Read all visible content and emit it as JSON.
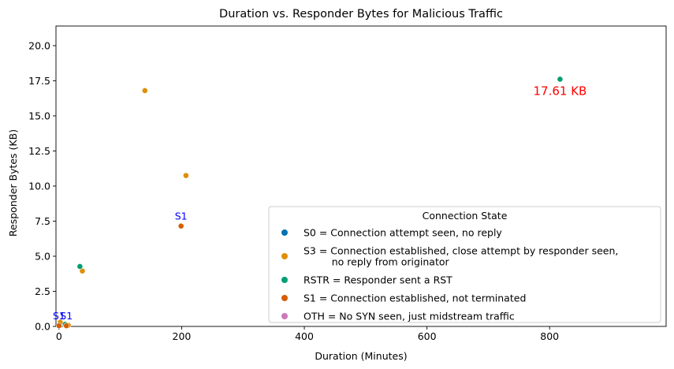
{
  "chart_data": {
    "type": "scatter",
    "title": "Duration vs. Responder Bytes for Malicious Traffic",
    "xlabel": "Duration (Minutes)",
    "ylabel": "Responder Bytes (KB)",
    "xlim": [
      -5,
      990
    ],
    "ylim": [
      0,
      21.4
    ],
    "xticks": [
      0,
      200,
      400,
      600,
      800
    ],
    "xtick_labels": [
      "0",
      "200",
      "400",
      "600",
      "800"
    ],
    "yticks": [
      0,
      2.5,
      5,
      7.5,
      10,
      12.5,
      15,
      17.5,
      20
    ],
    "ytick_labels": [
      "0.0",
      "2.5",
      "5.0",
      "7.5",
      "10.0",
      "12.5",
      "15.0",
      "17.5",
      "20.0"
    ],
    "grid": false,
    "legend": {
      "title": "Connection State",
      "position": "lower-right",
      "entries": [
        {
          "key": "S0",
          "lines": [
            "S0 = Connection attempt seen, no reply"
          ],
          "color": "#0173b2"
        },
        {
          "key": "S3",
          "lines": [
            "S3 = Connection established, close attempt by responder seen,",
            "         no reply from originator"
          ],
          "color": "#de8f05"
        },
        {
          "key": "RSTR",
          "lines": [
            "RSTR = Responder sent a RST"
          ],
          "color": "#029e73"
        },
        {
          "key": "S1",
          "lines": [
            "S1 = Connection established, not terminated"
          ],
          "color": "#d55e00"
        },
        {
          "key": "OTH",
          "lines": [
            "OTH = No SYN seen, just midstream traffic"
          ],
          "color": "#cc78bc"
        }
      ]
    },
    "series": [
      {
        "state": "S3",
        "points": [
          [
            140,
            16.8
          ],
          [
            207,
            10.75
          ],
          [
            38,
            3.95
          ],
          [
            2,
            0.3
          ],
          [
            15,
            0.08
          ]
        ]
      },
      {
        "state": "RSTR",
        "points": [
          [
            817,
            17.61
          ],
          [
            34,
            4.27
          ],
          [
            10,
            0.15
          ]
        ]
      },
      {
        "state": "S1",
        "points": [
          [
            199,
            7.15
          ],
          [
            0,
            0.05
          ],
          [
            12,
            0.05
          ]
        ]
      }
    ],
    "annotations": [
      {
        "text": "17.61 KB",
        "x": 817,
        "y": 17.61,
        "color": "#ff0000",
        "style": "kb"
      },
      {
        "text": "S1",
        "x": 199,
        "y": 7.15,
        "color": "#0000ff",
        "style": "s1"
      },
      {
        "text": "S1",
        "x": 0,
        "y": 0.05,
        "color": "#0000ff",
        "style": "s1"
      },
      {
        "text": "S1",
        "x": 12,
        "y": 0.05,
        "color": "#0000ff",
        "style": "s1"
      }
    ]
  }
}
